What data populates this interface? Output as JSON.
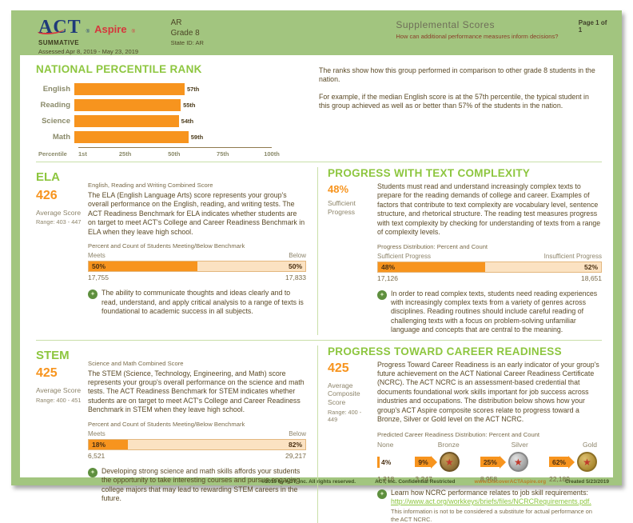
{
  "colors": {
    "page_green": "#a2c57f",
    "heading_green": "#8dc63f",
    "divider_green": "#c9dfa9",
    "icon_green": "#5e8f3e",
    "accent_orange": "#f7941e",
    "light_orange": "#fbe2c2",
    "text_brown": "#5b4a26",
    "muted_gray": "#8d846a",
    "logo_navy": "#1f3a7a",
    "logo_red": "#d6373d",
    "subtitle_maroon": "#8a3c28"
  },
  "header": {
    "logo_act": "ACT",
    "logo_reg": "®",
    "logo_aspire": "Aspire",
    "program": "SUMMATIVE",
    "assessed": "Assessed Apr 8, 2019 - May 23, 2019",
    "region": "AR",
    "grade": "Grade 8",
    "state_id": "State ID: AR",
    "title": "Supplemental Scores",
    "subtitle": "How can additional performance measures inform decisions?",
    "page_indicator": "Page 1 of 1"
  },
  "npr": {
    "title": "NATIONAL PERCENTILE RANK",
    "rows": [
      {
        "label": "English",
        "value": 57,
        "value_label": "57th"
      },
      {
        "label": "Reading",
        "value": 55,
        "value_label": "55th"
      },
      {
        "label": "Science",
        "value": 54,
        "value_label": "54th"
      },
      {
        "label": "Math",
        "value": 59,
        "value_label": "59th"
      }
    ],
    "axis_label": "Percentile",
    "ticks": [
      "1st",
      "25th",
      "50th",
      "75th",
      "100th"
    ],
    "description_1": "The ranks show how this group performed in comparison to other grade 8 students in the nation.",
    "description_2": "For example, if the median English score is at the 57th percentile, the typical student in this group achieved as well as or better than 57% of the students in the nation."
  },
  "ela": {
    "title": "ELA",
    "score": "426",
    "score_caption": "Average Score",
    "range": "Range: 403 - 447",
    "subtitle": "English, Reading and Writing Combined Score",
    "body": "The ELA (English Language Arts) score represents your group's overall performance on the English, reading, and writing tests. The ACT Readiness Benchmark for ELA indicates whether students are on target to meet ACT's College and Career Readiness Benchmark in ELA when they leave high school.",
    "benchmark": {
      "caption": "Percent and Count of Students Meeting/Below Benchmark",
      "left_label": "Meets",
      "right_label": "Below",
      "left_pct": 50,
      "right_pct": 50,
      "left_pct_label": "50%",
      "right_pct_label": "50%",
      "left_count": "17,755",
      "right_count": "17,833"
    },
    "note": "The ability to communicate thoughts and ideas clearly and to read, understand, and apply critical analysis to a range of texts is foundational to academic success in all subjects."
  },
  "text_complexity": {
    "title": "PROGRESS WITH TEXT COMPLEXITY",
    "stat": "48%",
    "stat_caption": "Sufficient Progress",
    "body": "Students must read and understand increasingly complex texts to prepare for the reading demands of college and career. Examples of factors that contribute to text complexity are vocabulary level, sentence structure, and rhetorical structure. The reading test measures progress with text complexity by checking for understanding of texts from a range of complexity levels.",
    "benchmark": {
      "caption": "Progress Distribution: Percent and Count",
      "left_label": "Sufficient Progress",
      "right_label": "Insufficient Progress",
      "left_pct": 48,
      "right_pct": 52,
      "left_pct_label": "48%",
      "right_pct_label": "52%",
      "left_count": "17,126",
      "right_count": "18,651"
    },
    "note": "In order to read complex texts, students need reading experiences with increasingly complex texts from a variety of genres across disciplines. Reading routines should include careful reading of challenging texts with a focus on problem-solving unfamiliar language and concepts that are central to the meaning."
  },
  "stem": {
    "title": "STEM",
    "score": "425",
    "score_caption": "Average Score",
    "range": "Range: 400 - 451",
    "subtitle": "Science and Math Combined Score",
    "body": "The STEM (Science, Technology, Engineering, and Math) score represents your group's overall performance on the science and math tests. The ACT Readiness Benchmark for STEM indicates whether students are on target to meet ACT's College and Career Readiness Benchmark in STEM when they leave high school.",
    "benchmark": {
      "caption": "Percent and Count of Students Meeting/Below Benchmark",
      "left_label": "Meets",
      "right_label": "Below",
      "left_pct": 18,
      "right_pct": 82,
      "left_pct_label": "18%",
      "right_pct_label": "82%",
      "left_count": "6,521",
      "right_count": "29,217"
    },
    "note": "Developing strong science and math skills affords your students the opportunity to take interesting courses and pursue engaging college majors that may lead to rewarding STEM careers in the future."
  },
  "career": {
    "title": "PROGRESS TOWARD CAREER READINESS",
    "score": "425",
    "score_caption": "Average Composite Score",
    "range": "Range: 400 - 449",
    "body": "Progress Toward Career Readiness is an early indicator of your group's future achievement on the ACT National Career Readiness Certificate (NCRC). The ACT NCRC is an assessment-based credential that documents foundational work skills important for job success across industries and occupations. The distribution below shows how your group's ACT Aspire composite scores relate to progress toward a Bronze, Silver or Gold level on the ACT NCRC.",
    "dist_caption": "Predicted Career Readiness Distribution: Percent and Count",
    "levels": [
      {
        "label": "None",
        "pct_label": "4%",
        "count": "1,318"
      },
      {
        "label": "Bronze",
        "pct_label": "9%",
        "count": "3,247"
      },
      {
        "label": "Silver",
        "pct_label": "25%",
        "count": "8,958"
      },
      {
        "label": "Gold",
        "pct_label": "62%",
        "count": "22,189"
      }
    ],
    "medal_star": "★",
    "note": "Learn how NCRC performance relates to job skill requirements:",
    "link": "http://www.act.org/workkeys/briefs/files/NCRCRequirements.pdf.",
    "disclaimer": "This information is not to be considered a substitute for actual performance on the ACT NCRC."
  },
  "note_icon_glyph": "✦",
  "footer": {
    "copyright": "©2019 by ACT, Inc. All rights reserved.",
    "confidential": "ACT, Inc. Confidential Restricted",
    "website": "www.DiscoverACTAspire.org",
    "created": "Created 5/23/2019"
  },
  "chart_data": [
    {
      "type": "bar",
      "orientation": "horizontal",
      "title": "NATIONAL PERCENTILE RANK",
      "categories": [
        "English",
        "Reading",
        "Science",
        "Math"
      ],
      "values": [
        57,
        55,
        54,
        59
      ],
      "value_labels": [
        "57th",
        "55th",
        "54th",
        "59th"
      ],
      "xlabel": "Percentile",
      "xticks": [
        "1st",
        "25th",
        "50th",
        "75th",
        "100th"
      ],
      "xlim": [
        1,
        100
      ],
      "grid": false,
      "legend": "none"
    },
    {
      "type": "bar",
      "stacked": true,
      "title": "ELA — Percent and Count of Students Meeting/Below Benchmark",
      "categories": [
        "Meets",
        "Below"
      ],
      "values": [
        50,
        50
      ],
      "counts": [
        17755,
        17833
      ],
      "unit": "%"
    },
    {
      "type": "bar",
      "stacked": true,
      "title": "Progress Distribution: Percent and Count",
      "categories": [
        "Sufficient Progress",
        "Insufficient Progress"
      ],
      "values": [
        48,
        52
      ],
      "counts": [
        17126,
        18651
      ],
      "unit": "%"
    },
    {
      "type": "bar",
      "stacked": true,
      "title": "STEM — Percent and Count of Students Meeting/Below Benchmark",
      "categories": [
        "Meets",
        "Below"
      ],
      "values": [
        18,
        82
      ],
      "counts": [
        6521,
        29217
      ],
      "unit": "%"
    },
    {
      "type": "bar",
      "title": "Predicted Career Readiness Distribution: Percent and Count",
      "categories": [
        "None",
        "Bronze",
        "Silver",
        "Gold"
      ],
      "values": [
        4,
        9,
        25,
        62
      ],
      "counts": [
        1318,
        3247,
        8958,
        22189
      ],
      "unit": "%"
    }
  ]
}
